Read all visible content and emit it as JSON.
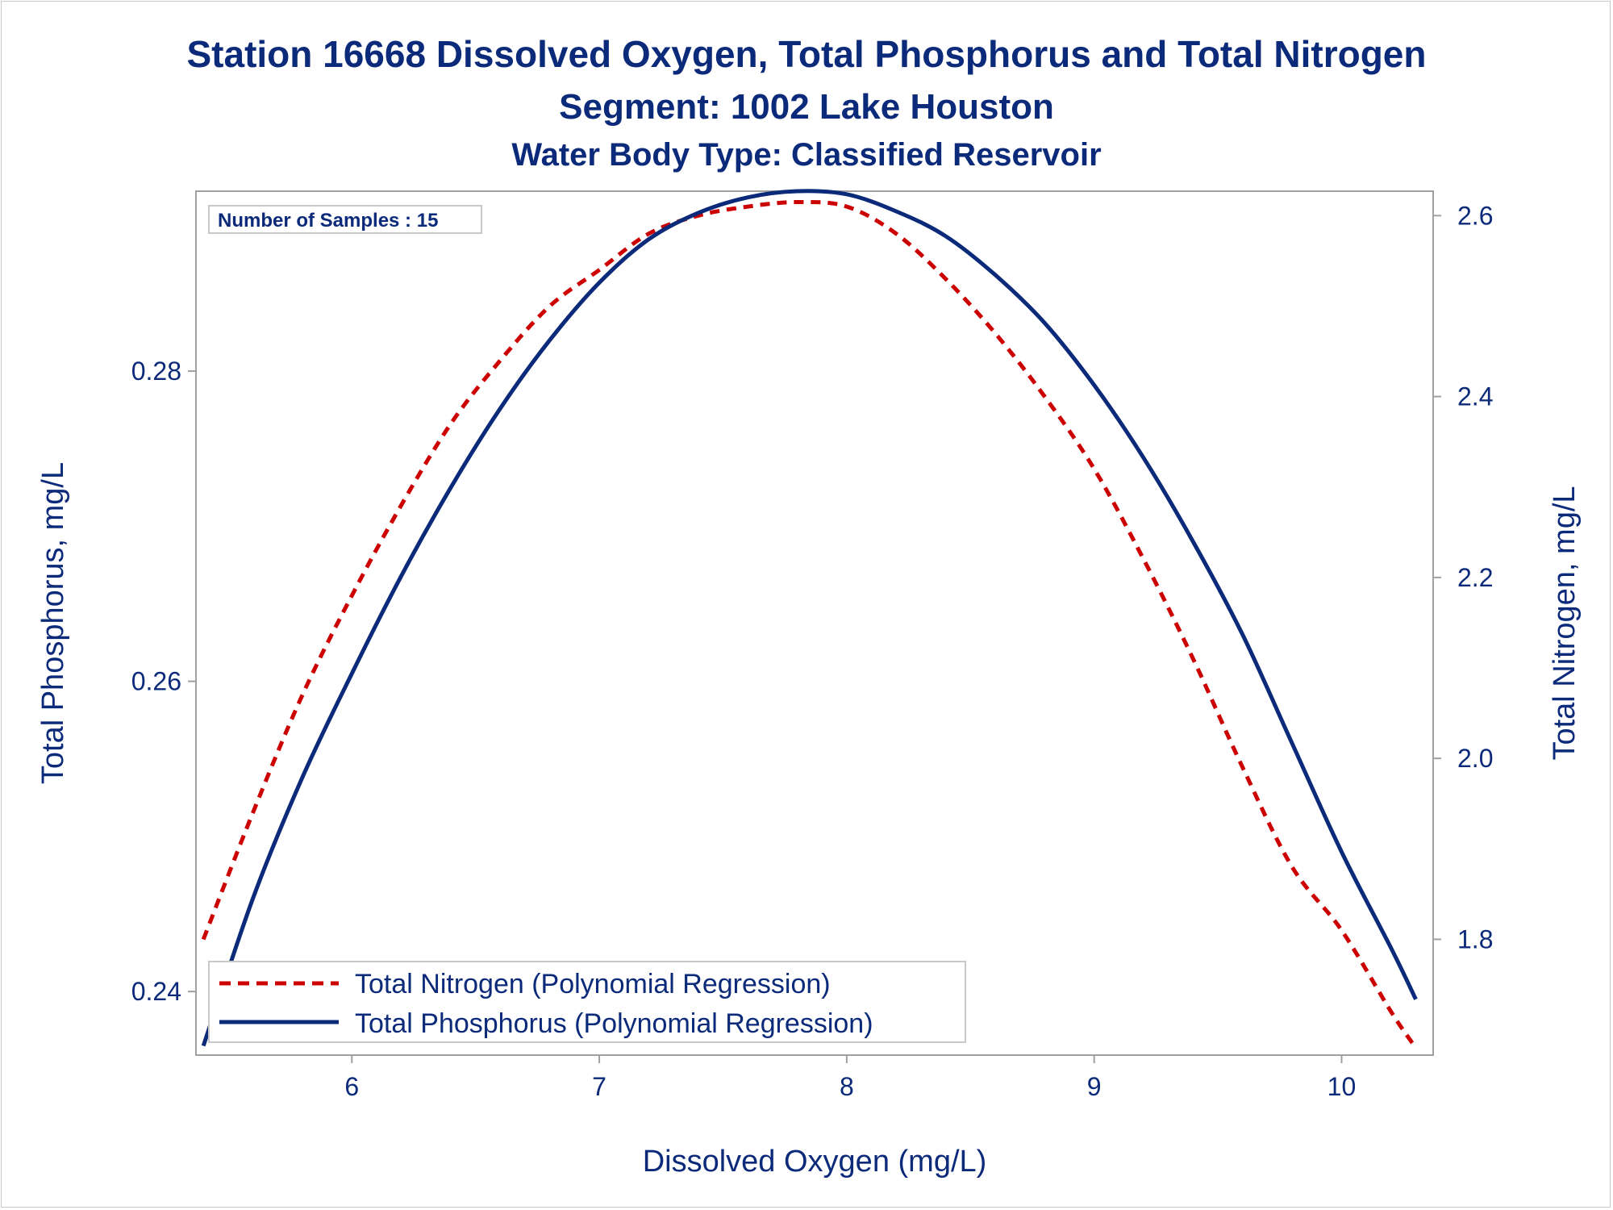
{
  "chart_data": {
    "type": "line",
    "title": "Station 16668  Dissolved Oxygen, Total Phosphorus and Total Nitrogen",
    "subtitle": "Segment: 1002  Lake Houston",
    "subtitle2": "Water Body Type: Classified Reservoir",
    "xlabel": "Dissolved Oxygen (mg/L)",
    "ylabel_left": "Total Phosphorus, mg/L",
    "ylabel_right": "Total Nitrogen, mg/L",
    "xlim": [
      5.37,
      10.37
    ],
    "ylim_left": [
      0.2359,
      0.2916
    ],
    "ylim_right": [
      1.672,
      2.627
    ],
    "x_ticks": [
      "6",
      "7",
      "8",
      "9",
      "10"
    ],
    "y_left_ticks": [
      "0.24",
      "0.26",
      "0.28"
    ],
    "y_right_ticks": [
      "1.8",
      "2.0",
      "2.2",
      "2.4",
      "2.6"
    ],
    "grid": false,
    "legend_position": "bottom-left inside",
    "inset_label": "Number of Samples : 15",
    "series": [
      {
        "name": "Total Nitrogen (Polynomial Regression)",
        "axis": "right",
        "style": "dashed",
        "color": "#cc0000",
        "x": [
          5.4,
          5.6,
          5.8,
          6.0,
          6.2,
          6.4,
          6.6,
          6.8,
          7.0,
          7.2,
          7.4,
          7.6,
          7.8,
          8.0,
          8.2,
          8.4,
          8.6,
          8.8,
          9.0,
          9.2,
          9.4,
          9.6,
          9.8,
          10.0,
          10.2,
          10.3
        ],
        "y": [
          1.8,
          1.94,
          2.07,
          2.18,
          2.28,
          2.37,
          2.44,
          2.5,
          2.54,
          2.58,
          2.6,
          2.61,
          2.615,
          2.61,
          2.58,
          2.53,
          2.47,
          2.4,
          2.32,
          2.22,
          2.11,
          1.99,
          1.88,
          1.81,
          1.72,
          1.68
        ]
      },
      {
        "name": "Total Phosphorus (Polynomial Regression)",
        "axis": "left",
        "style": "solid",
        "color": "#0b2a7a",
        "x": [
          5.4,
          5.6,
          5.8,
          6.0,
          6.2,
          6.4,
          6.6,
          6.8,
          7.0,
          7.2,
          7.4,
          7.6,
          7.8,
          8.0,
          8.2,
          8.4,
          8.6,
          8.8,
          9.0,
          9.2,
          9.4,
          9.6,
          9.8,
          10.0,
          10.2,
          10.3
        ],
        "y": [
          0.2365,
          0.246,
          0.2538,
          0.2605,
          0.2668,
          0.2725,
          0.2776,
          0.282,
          0.2857,
          0.2885,
          0.2902,
          0.2912,
          0.2916,
          0.2914,
          0.2903,
          0.2887,
          0.2862,
          0.2831,
          0.2791,
          0.2744,
          0.269,
          0.263,
          0.256,
          0.249,
          0.2428,
          0.2395
        ]
      }
    ]
  }
}
